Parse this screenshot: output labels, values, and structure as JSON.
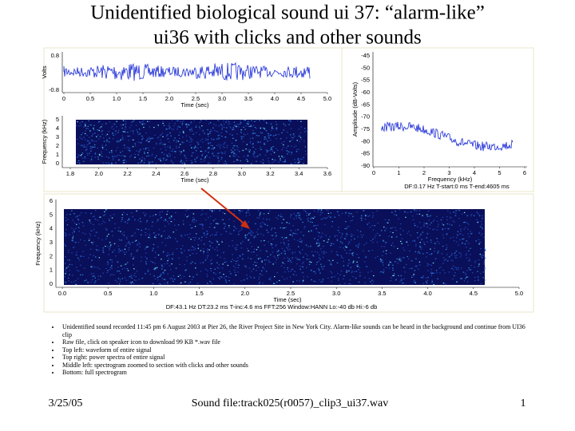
{
  "title": [
    "Unidentified biological sound ui 37: “alarm-like”",
    "ui36 with clicks and other sounds"
  ],
  "waveform": {
    "ylabel": "Volts",
    "xlabel": "Time (sec)",
    "yticks": [
      "0.8",
      "-0.8"
    ],
    "xticks": [
      "0",
      "0.5",
      "1.0",
      "1.5",
      "2.0",
      "2.5",
      "3.0",
      "3.5",
      "4.0",
      "4.5",
      "5.0"
    ]
  },
  "zoom_spectrogram": {
    "ylabel": "Frequency (kHz)",
    "xlabel": "Time (sec)",
    "yticks": [
      "0",
      "1",
      "2",
      "3",
      "4",
      "5"
    ],
    "xticks": [
      "1.8",
      "2.0",
      "2.2",
      "2.4",
      "2.6",
      "2.8",
      "3.0",
      "3.2",
      "3.4",
      "3.6"
    ]
  },
  "power_spectrum": {
    "ylabel": "Amplitude (dB-Volts)",
    "xlabel": "Frequency (kHz)",
    "yticks": [
      "-45",
      "-50",
      "-55",
      "-60",
      "-65",
      "-70",
      "-75",
      "-80",
      "-85",
      "-90"
    ],
    "xticks": [
      "0",
      "1",
      "2",
      "3",
      "4",
      "5",
      "6"
    ],
    "info": "DF:0.17 Hz    T-start:0 ms    T-end:4605 ms"
  },
  "full_spectrogram": {
    "ylabel": "Frequency (kHz)",
    "xlabel": "Time (sec)",
    "yticks": [
      "0",
      "1",
      "2",
      "3",
      "4",
      "5",
      "6"
    ],
    "xticks": [
      "0.0",
      "0.5",
      "1.0",
      "1.5",
      "2.0",
      "2.5",
      "3.0",
      "3.5",
      "4.0",
      "4.5",
      "5.0"
    ],
    "info": "DF:43.1 Hz    DT:23.2 ms    T-inc:4.6 ms    FFT:256    Window:HANN    Lo:-40 db    Hi:-6 db"
  },
  "bullets": [
    "Unidentified sound recorded 11:45 pm 6 August 2003 at Pier 26, the River Project Site in New York City.  Alarm-like sounds can be heard in the background and continue from UI36 clip",
    "Raw file, click on speaker icon to download 99 KB *.wav file",
    "Top left: waveform of entire signal",
    "Top right: power spectra of entire signal",
    "Middle left: spectrogram zoomed to section with clicks and other sounds",
    "Bottom: full spectrogram"
  ],
  "footer": {
    "date": "3/25/05",
    "file": "Sound file:track025(r0057)_clip3_ui37.wav",
    "page": "1"
  }
}
